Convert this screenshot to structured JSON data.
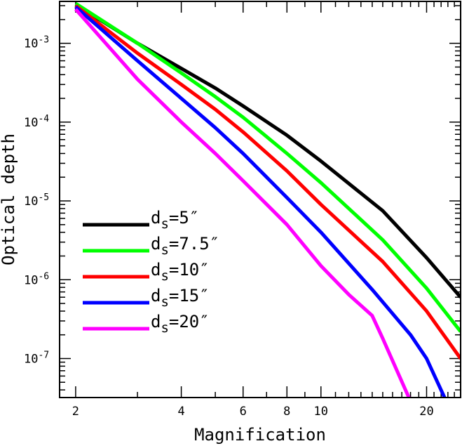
{
  "chart_data": {
    "type": "line",
    "title": "",
    "xlabel": "Magnification",
    "ylabel": "Optical depth",
    "xscale": "log",
    "yscale": "log",
    "xlim": [
      1.8,
      25
    ],
    "ylim": [
      3.2e-08,
      0.0034
    ],
    "xticks": [
      {
        "value": 2,
        "label": "2"
      },
      {
        "value": 4,
        "label": "4"
      },
      {
        "value": 6,
        "label": "6"
      },
      {
        "value": 8,
        "label": "8"
      },
      {
        "value": 10,
        "label": "10"
      },
      {
        "value": 20,
        "label": "20"
      }
    ],
    "yticks": [
      {
        "value": 1e-07,
        "base": "10",
        "exp": "-7"
      },
      {
        "value": 1e-06,
        "base": "10",
        "exp": "-6"
      },
      {
        "value": 1e-05,
        "base": "10",
        "exp": "-5"
      },
      {
        "value": 0.0001,
        "base": "10",
        "exp": "-4"
      },
      {
        "value": 0.001,
        "base": "10",
        "exp": "-3"
      }
    ],
    "legend_position": "lower-left",
    "series": [
      {
        "name": "ds=5″",
        "label_main": "d",
        "label_sub": "s",
        "label_rest": "=5″",
        "color": "#000000",
        "x": [
          2,
          3,
          4,
          5,
          6,
          8,
          10,
          15,
          20,
          25
        ],
        "y": [
          0.0031,
          0.001,
          0.00048,
          0.00027,
          0.00016,
          6.8e-05,
          3.2e-05,
          7.5e-06,
          1.9e-06,
          6e-07
        ]
      },
      {
        "name": "ds=7.5″",
        "label_main": "d",
        "label_sub": "s",
        "label_rest": "=7.5″",
        "color": "#00ff00",
        "x": [
          2,
          3,
          4,
          5,
          6,
          8,
          10,
          15,
          20,
          25
        ],
        "y": [
          0.0032,
          0.001,
          0.00042,
          0.00021,
          0.000115,
          4e-05,
          1.7e-05,
          3.2e-06,
          7.8e-07,
          2.2e-07
        ]
      },
      {
        "name": "ds=10″",
        "label_main": "d",
        "label_sub": "s",
        "label_rest": "=10″",
        "color": "#ff0000",
        "x": [
          2,
          3,
          4,
          5,
          6,
          8,
          10,
          15,
          20,
          25
        ],
        "y": [
          0.003,
          0.00075,
          0.0003,
          0.000145,
          7.5e-05,
          2.4e-05,
          9e-06,
          1.7e-06,
          4e-07,
          1e-07
        ]
      },
      {
        "name": "ds=15″",
        "label_main": "d",
        "label_sub": "s",
        "label_rest": "=15″",
        "color": "#0000ff",
        "x": [
          2,
          3,
          4,
          5,
          6,
          8,
          10,
          14,
          18,
          20,
          22.5
        ],
        "y": [
          0.0029,
          0.0006,
          0.0002,
          8.5e-05,
          4e-05,
          1.1e-05,
          4e-06,
          7.5e-07,
          2e-07,
          1e-07,
          3.2e-08
        ]
      },
      {
        "name": "ds=20″",
        "label_main": "d",
        "label_sub": "s",
        "label_rest": "=20″",
        "color": "#ff00ff",
        "x": [
          2,
          3,
          4,
          5,
          6,
          8,
          10,
          12,
          14,
          15,
          17.8
        ],
        "y": [
          0.0027,
          0.00035,
          0.0001,
          4e-05,
          1.8e-05,
          5e-06,
          1.5e-06,
          6.5e-07,
          3.5e-07,
          1.8e-07,
          3.2e-08
        ]
      }
    ]
  }
}
